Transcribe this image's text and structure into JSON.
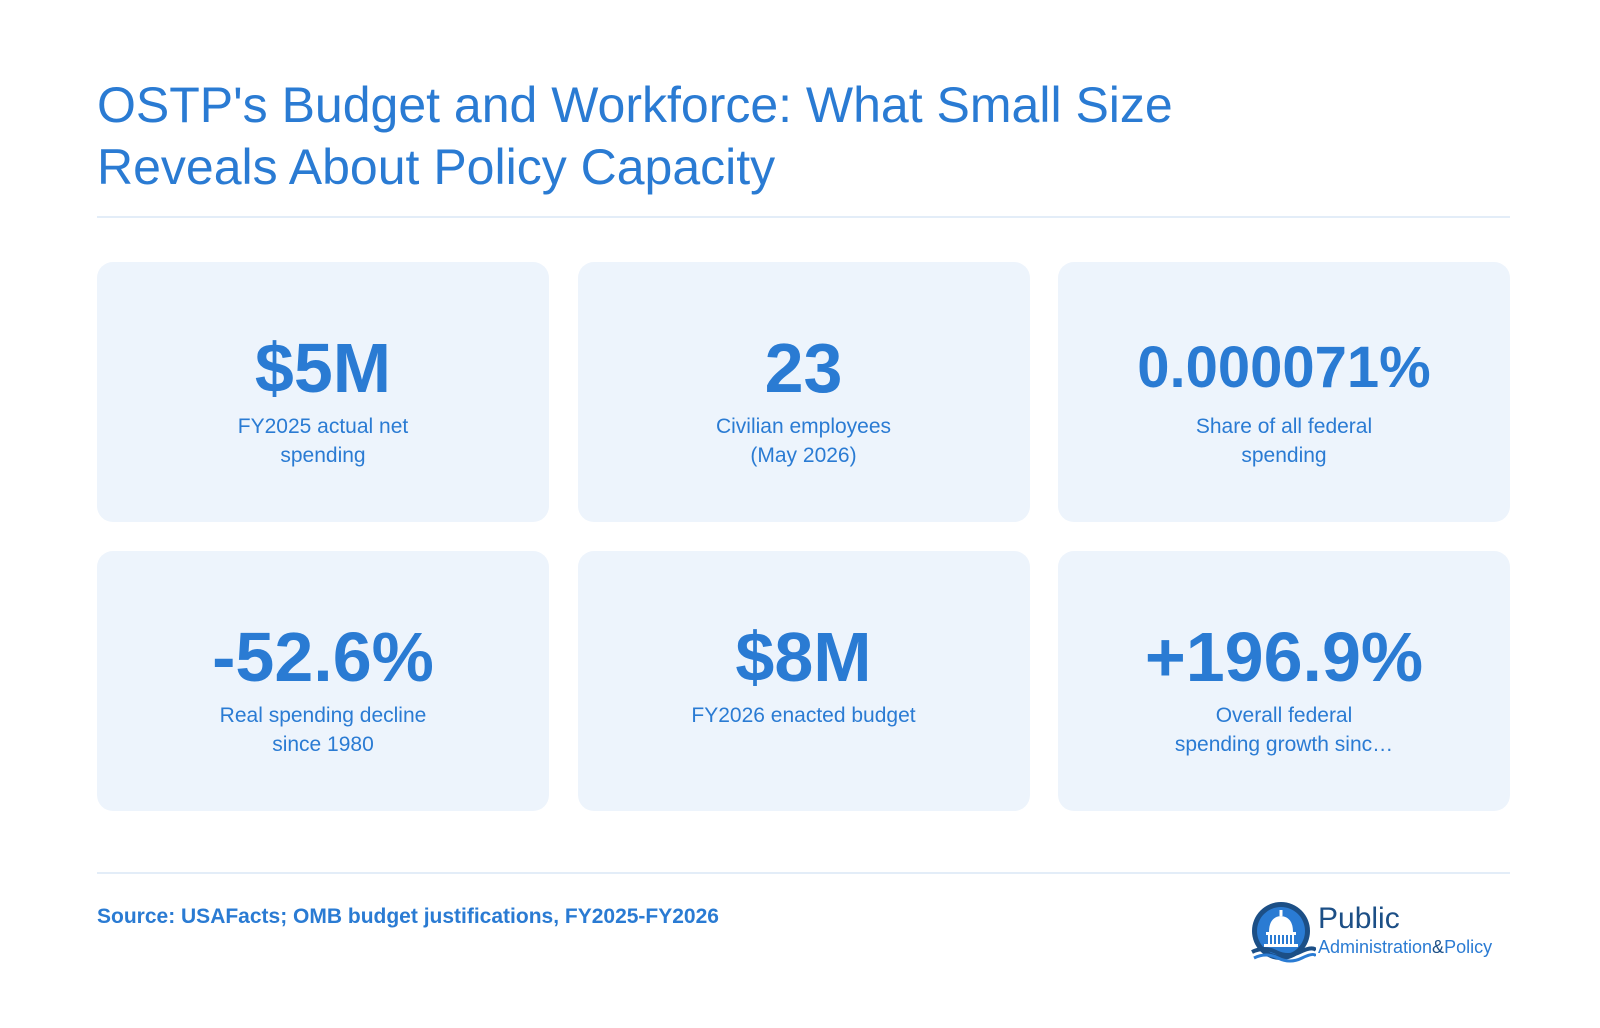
{
  "title": {
    "line1": "OSTP's Budget and Workforce: What Small Size",
    "line2": "Reveals About Policy Capacity"
  },
  "stats": [
    {
      "value": "$5M",
      "label_line1": "FY2025 actual net",
      "label_line2": "spending"
    },
    {
      "value": "23",
      "label_line1": "Civilian employees",
      "label_line2": "(May 2026)"
    },
    {
      "value": "0.000071%",
      "label_line1": "Share of all federal",
      "label_line2": "spending"
    },
    {
      "value": "-52.6%",
      "label_line1": "Real spending decline",
      "label_line2": "since 1980"
    },
    {
      "value": "$8M",
      "label_line1": "FY2026 enacted budget",
      "label_line2": ""
    },
    {
      "value": "+196.9%",
      "label_line1": "Overall federal",
      "label_line2": "spending growth sinc…"
    }
  ],
  "source": "Source: USAFacts; OMB budget justifications, FY2025-FY2026",
  "logo": {
    "word1": "Public",
    "word2_a": "Administration",
    "word2_amp": "&",
    "word2_b": "Policy",
    "icon": "capitol-dome-icon"
  },
  "colors": {
    "accent": "#2a7bd3",
    "card_bg": "#edf4fc",
    "logo_navy": "#1c4f86"
  }
}
